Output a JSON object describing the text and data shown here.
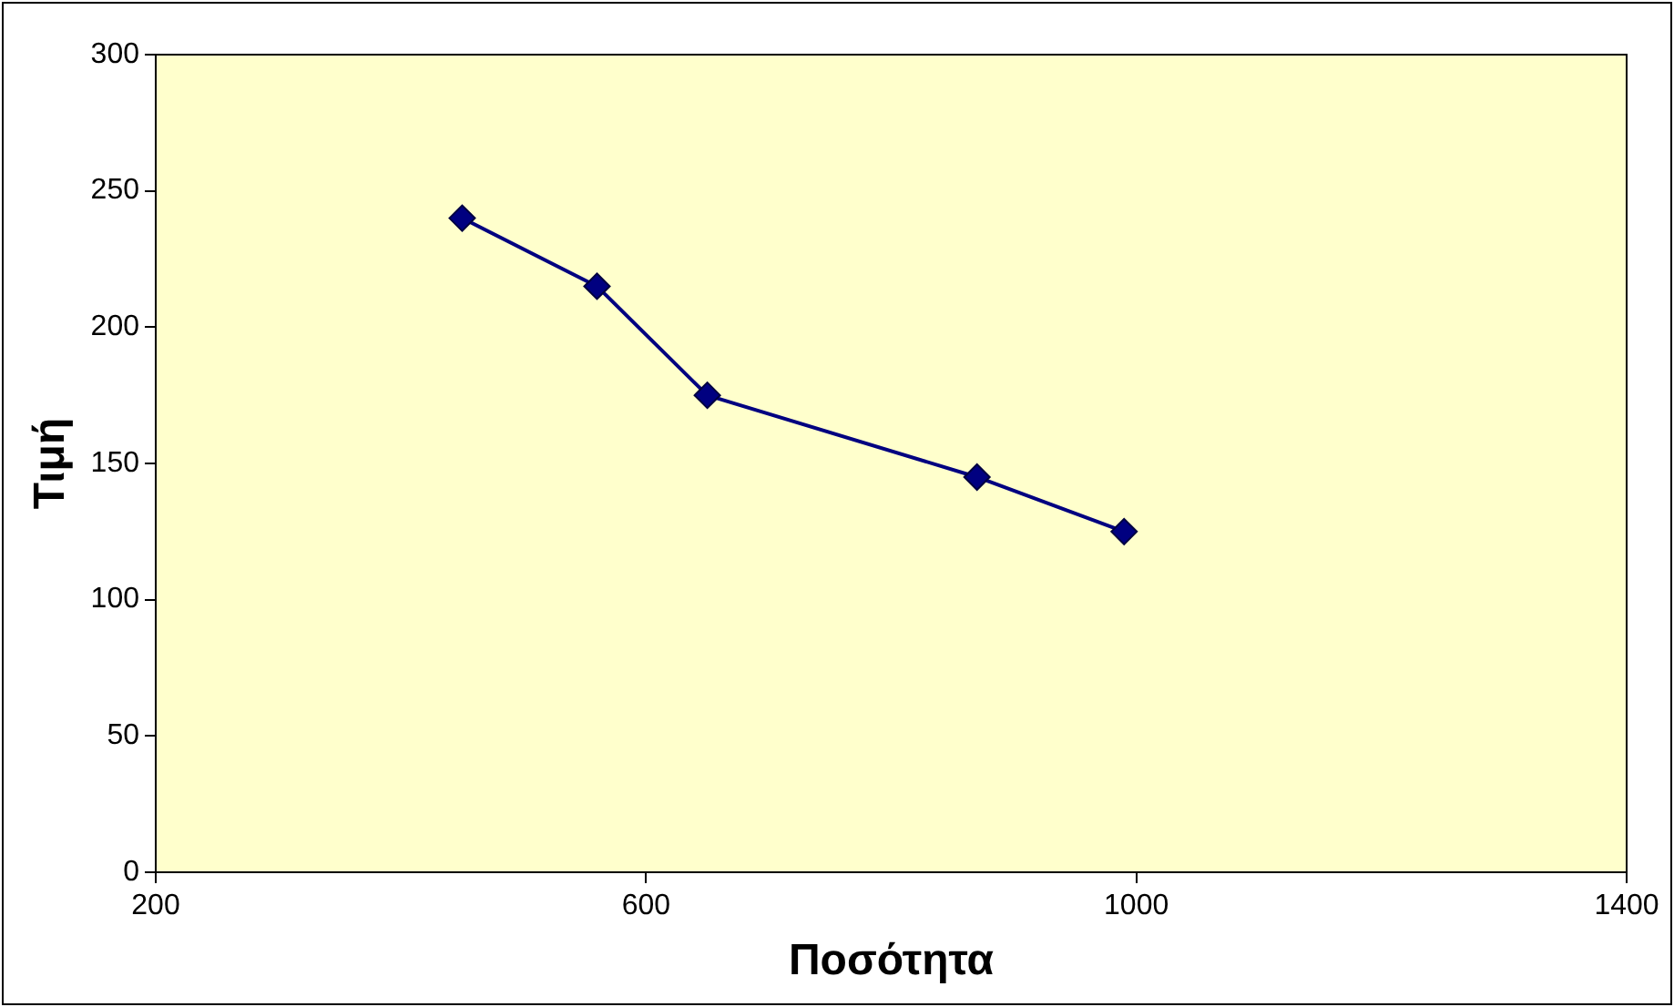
{
  "chart_data": {
    "type": "line",
    "xlabel": "Ποσότητα",
    "ylabel": "Τιμή",
    "x": [
      450,
      560,
      650,
      870,
      990
    ],
    "series": [
      {
        "color": "#000080",
        "values": [
          240,
          215,
          175,
          145,
          125
        ]
      }
    ],
    "xlim": [
      200,
      1400
    ],
    "xticks": [
      200,
      600,
      1000,
      1400
    ],
    "ylim": [
      0,
      300
    ],
    "yticks": [
      0,
      50,
      100,
      150,
      200,
      250,
      300
    ],
    "marker": "diamond",
    "line_style": "solid",
    "grid": false,
    "legend": false
  }
}
